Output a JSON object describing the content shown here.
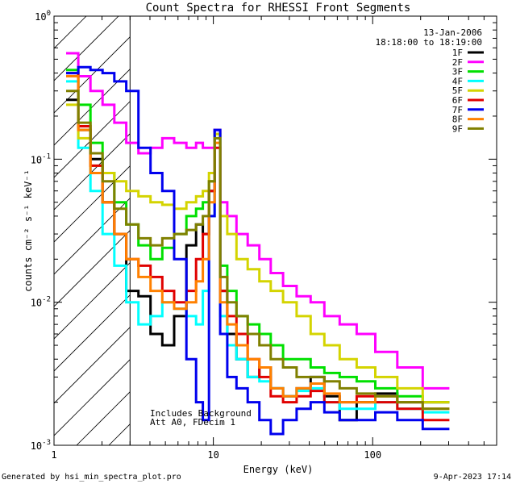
{
  "chart_data": {
    "type": "line",
    "title": "Count Spectra for RHESSI Front Segments",
    "xlabel": "Energy (keV)",
    "ylabel": "counts cm⁻² s⁻¹ keV⁻¹",
    "xscale": "log",
    "yscale": "log",
    "xlim": [
      1,
      600
    ],
    "ylim": [
      0.001,
      1
    ],
    "x_ticks": [
      {
        "value": 1,
        "label": "1"
      },
      {
        "value": 10,
        "label": "10"
      },
      {
        "value": 100,
        "label": "100"
      }
    ],
    "y_ticks": [
      {
        "value": 1,
        "mant": "10",
        "exp": "0"
      },
      {
        "value": 0.1,
        "mant": "10",
        "exp": "-1"
      },
      {
        "value": 0.01,
        "mant": "10",
        "exp": "-2"
      },
      {
        "value": 0.001,
        "mant": "10",
        "exp": "-3"
      }
    ],
    "date": "13-Jan-2006",
    "time_range": "18:18:00 to 18:19:00",
    "annotations": [
      "Includes Background",
      "Att A0, FDecim 1"
    ],
    "hatched_region": {
      "x_start": 1,
      "x_end": 3
    },
    "legend_position": "top-right",
    "series": [
      {
        "name": "1F",
        "color": "#000000",
        "y": [
          0.26,
          0.16,
          0.1,
          0.05,
          0.03,
          0.012,
          0.011,
          0.006,
          0.005,
          0.008,
          0.025,
          0.035,
          0.03,
          0.06,
          0.16,
          0.012,
          0.006,
          0.004,
          0.003,
          0.0035,
          0.0025,
          0.0022,
          0.0025,
          0.003,
          0.0022,
          0.0015,
          0.002,
          0.0023,
          0.002,
          0.002
        ]
      },
      {
        "name": "2F",
        "color": "#ff00ff",
        "y": [
          0.55,
          0.38,
          0.3,
          0.24,
          0.18,
          0.13,
          0.11,
          0.12,
          0.14,
          0.13,
          0.12,
          0.13,
          0.12,
          0.12,
          0.16,
          0.05,
          0.04,
          0.03,
          0.025,
          0.02,
          0.016,
          0.013,
          0.011,
          0.01,
          0.008,
          0.007,
          0.006,
          0.0045,
          0.0035,
          0.0025
        ]
      },
      {
        "name": "3F",
        "color": "#00e000",
        "y": [
          0.42,
          0.24,
          0.13,
          0.08,
          0.05,
          0.035,
          0.025,
          0.02,
          0.024,
          0.03,
          0.04,
          0.045,
          0.05,
          0.07,
          0.15,
          0.018,
          0.012,
          0.008,
          0.007,
          0.006,
          0.005,
          0.004,
          0.004,
          0.0035,
          0.0032,
          0.003,
          0.0028,
          0.0025,
          0.0022,
          0.002
        ]
      },
      {
        "name": "4F",
        "color": "#00ffff",
        "y": [
          0.35,
          0.12,
          0.06,
          0.03,
          0.018,
          0.01,
          0.007,
          0.008,
          0.01,
          0.009,
          0.008,
          0.007,
          0.012,
          0.04,
          0.14,
          0.008,
          0.005,
          0.004,
          0.003,
          0.0028,
          0.0025,
          0.0022,
          0.0024,
          0.0025,
          0.002,
          0.0018,
          0.0018,
          0.002,
          0.0018,
          0.0017
        ]
      },
      {
        "name": "5F",
        "color": "#d4d400",
        "y": [
          0.24,
          0.14,
          0.09,
          0.08,
          0.07,
          0.06,
          0.055,
          0.05,
          0.048,
          0.045,
          0.05,
          0.055,
          0.06,
          0.08,
          0.15,
          0.04,
          0.03,
          0.02,
          0.017,
          0.014,
          0.012,
          0.01,
          0.008,
          0.006,
          0.005,
          0.004,
          0.0035,
          0.003,
          0.0025,
          0.002
        ]
      },
      {
        "name": "6F",
        "color": "#e00000",
        "y": [
          0.4,
          0.17,
          0.09,
          0.05,
          0.03,
          0.02,
          0.018,
          0.015,
          0.012,
          0.01,
          0.012,
          0.02,
          0.03,
          0.06,
          0.12,
          0.012,
          0.008,
          0.006,
          0.004,
          0.003,
          0.0022,
          0.002,
          0.0022,
          0.0024,
          0.002,
          0.002,
          0.0022,
          0.002,
          0.0018,
          0.0015
        ]
      },
      {
        "name": "7F",
        "color": "#0000ee",
        "y": [
          0.4,
          0.44,
          0.42,
          0.4,
          0.35,
          0.3,
          0.12,
          0.08,
          0.06,
          0.02,
          0.004,
          0.002,
          0.0015,
          0.04,
          0.16,
          0.006,
          0.003,
          0.0025,
          0.002,
          0.0015,
          0.0012,
          0.0015,
          0.0018,
          0.002,
          0.0017,
          0.0015,
          0.0015,
          0.0017,
          0.0015,
          0.0013
        ]
      },
      {
        "name": "8F",
        "color": "#ff8000",
        "y": [
          0.38,
          0.16,
          0.08,
          0.05,
          0.03,
          0.02,
          0.015,
          0.012,
          0.01,
          0.009,
          0.01,
          0.014,
          0.02,
          0.05,
          0.13,
          0.01,
          0.007,
          0.005,
          0.004,
          0.0035,
          0.0025,
          0.0022,
          0.0025,
          0.0027,
          0.0023,
          0.002,
          0.002,
          0.0022,
          0.002,
          0.0018
        ]
      },
      {
        "name": "9F",
        "color": "#808000",
        "y": [
          0.3,
          0.18,
          0.11,
          0.07,
          0.045,
          0.035,
          0.028,
          0.025,
          0.028,
          0.03,
          0.032,
          0.035,
          0.04,
          0.07,
          0.14,
          0.015,
          0.01,
          0.008,
          0.006,
          0.005,
          0.004,
          0.0035,
          0.003,
          0.003,
          0.0028,
          0.0025,
          0.0023,
          0.0022,
          0.002,
          0.0018
        ]
      }
    ],
    "x": [
      1.3,
      1.55,
      1.85,
      2.2,
      2.6,
      3.1,
      3.7,
      4.4,
      5.2,
      6.2,
      7.4,
      8.2,
      9.0,
      9.8,
      10.6,
      11.5,
      13,
      15,
      18,
      21,
      25,
      30,
      37,
      45,
      55,
      70,
      90,
      120,
      170,
      250
    ]
  },
  "footer": {
    "left": "Generated by hsi_min_spectra_plot.pro",
    "right": "9-Apr-2023 17:14"
  }
}
